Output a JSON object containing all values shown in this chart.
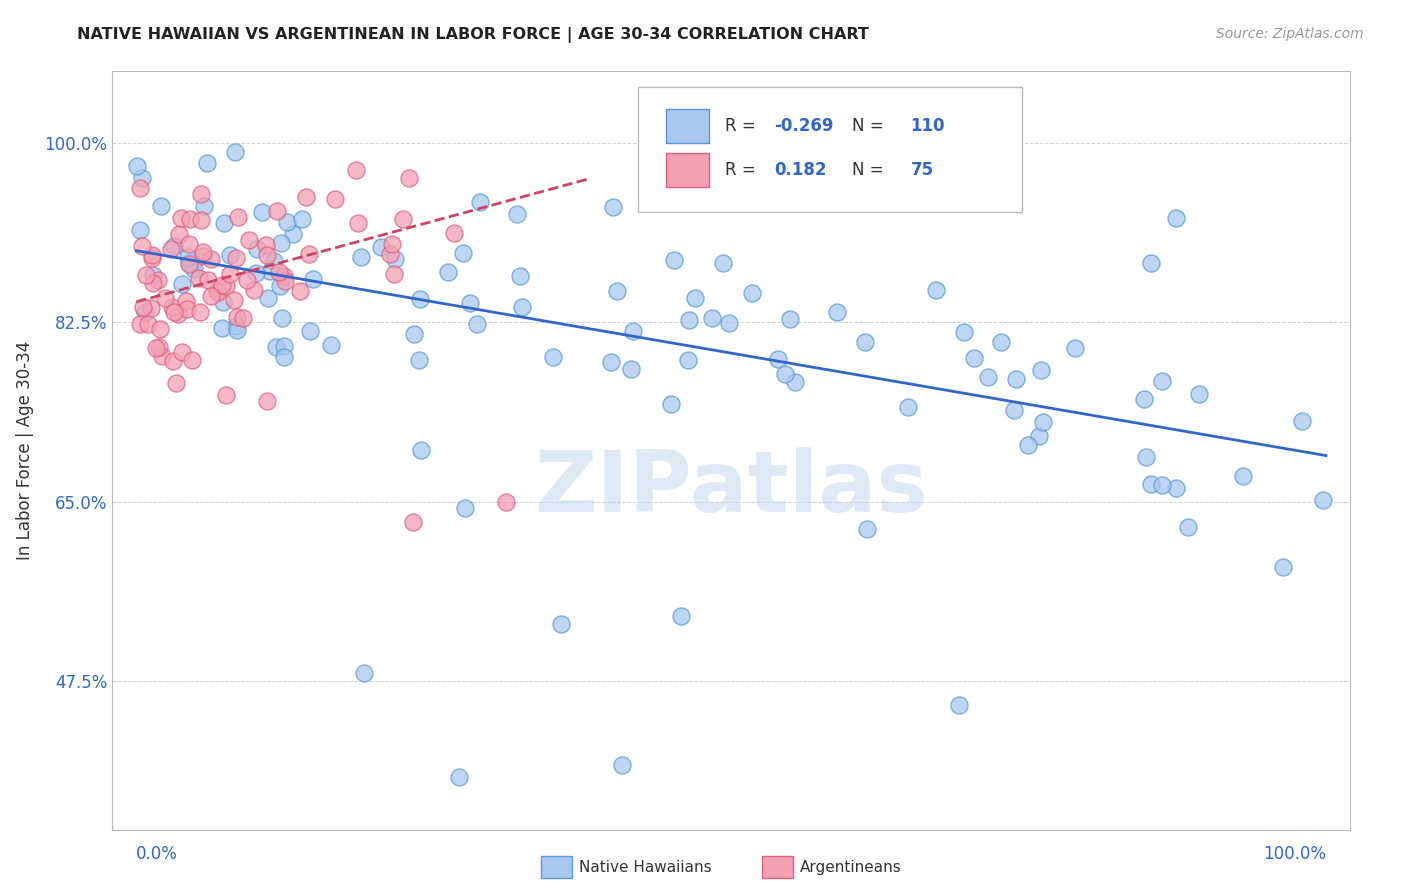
{
  "title": "NATIVE HAWAIIAN VS ARGENTINEAN IN LABOR FORCE | AGE 30-34 CORRELATION CHART",
  "source": "Source: ZipAtlas.com",
  "ylabel": "In Labor Force | Age 30-34",
  "legend_r_blue": "-0.269",
  "legend_n_blue": "110",
  "legend_r_pink": "0.182",
  "legend_n_pink": "75",
  "blue_fill": "#A8C8F0",
  "blue_edge": "#5B9BD5",
  "pink_fill": "#F4A0B5",
  "pink_edge": "#E06080",
  "trend_blue": "#3366CC",
  "trend_pink": "#CC4466",
  "y_tick_vals": [
    0.475,
    0.65,
    0.825,
    1.0
  ],
  "y_tick_labels": [
    "47.5%",
    "65.0%",
    "82.5%",
    "100.0%"
  ],
  "xlim": [
    -0.02,
    1.02
  ],
  "ylim": [
    0.33,
    1.07
  ],
  "blue_trend_x0": 0.0,
  "blue_trend_x1": 1.0,
  "blue_trend_y0": 0.895,
  "blue_trend_y1": 0.695,
  "pink_trend_x0": 0.0,
  "pink_trend_x1": 0.38,
  "pink_trend_y0": 0.845,
  "pink_trend_y1": 0.965
}
